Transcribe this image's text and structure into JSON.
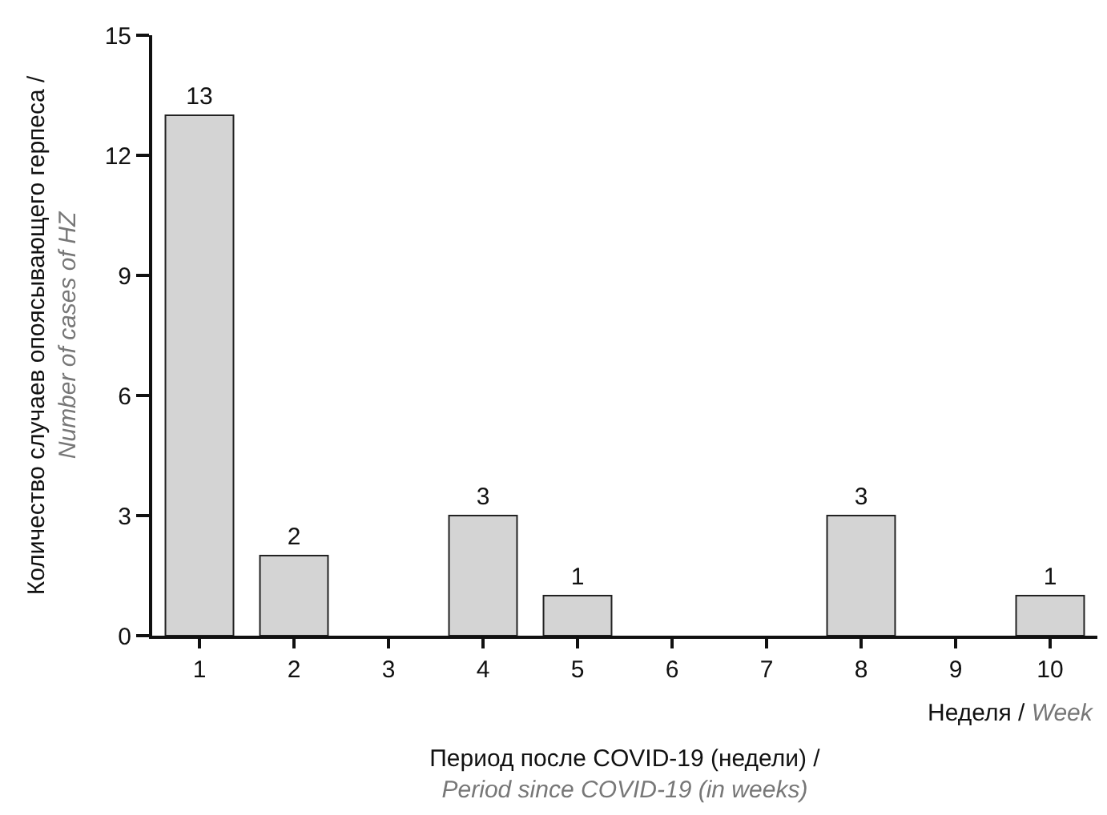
{
  "chart_data": {
    "type": "bar",
    "categories": [
      "1",
      "2",
      "3",
      "4",
      "5",
      "6",
      "7",
      "8",
      "9",
      "10"
    ],
    "values": [
      13,
      2,
      0,
      3,
      1,
      0,
      0,
      3,
      0,
      1
    ],
    "value_labels": [
      "13",
      "2",
      null,
      "3",
      "1",
      null,
      null,
      "3",
      null,
      "1"
    ],
    "color": "#d4d4d4",
    "ylim": [
      0,
      15
    ],
    "yticks": [
      0,
      3,
      6,
      9,
      12,
      15
    ],
    "ylabel": "Количество случаев опоясывающего герпеса / Number of cases of HZ",
    "xlabel": "Период после COVID-19 (недели) / Period since COVID-19 (in weeks)",
    "annotations": [
      "Неделя / Week"
    ],
    "legend": false
  }
}
